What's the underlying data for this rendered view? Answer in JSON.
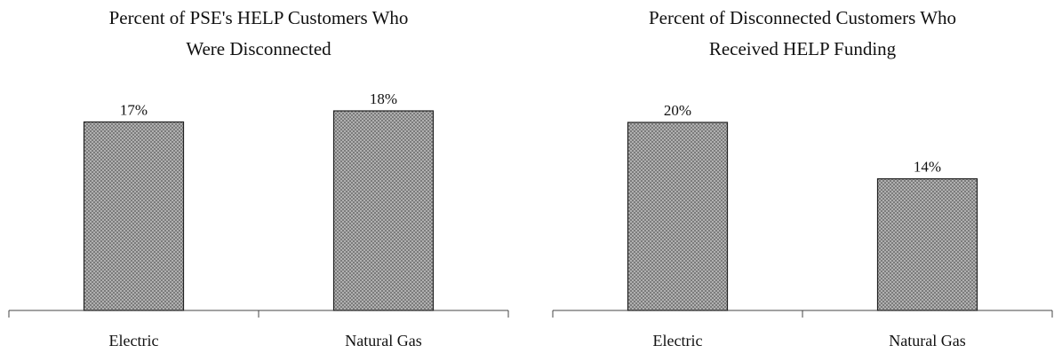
{
  "chart_data": [
    {
      "type": "bar",
      "title": [
        "Percent of PSE's HELP Customers Who",
        "Were  Disconnected"
      ],
      "categories": [
        "Electric",
        "Natural Gas"
      ],
      "values": [
        17,
        18
      ],
      "value_labels": [
        "17%",
        "18%"
      ],
      "color": "#8a8a8a"
    },
    {
      "type": "bar",
      "title": [
        "Percent of Disconnected Customers Who",
        "Received HELP Funding"
      ],
      "categories": [
        "Electric",
        "Natural Gas"
      ],
      "values": [
        20,
        14
      ],
      "value_labels": [
        "20%",
        "14%"
      ],
      "color": "#8a8a8a"
    }
  ]
}
